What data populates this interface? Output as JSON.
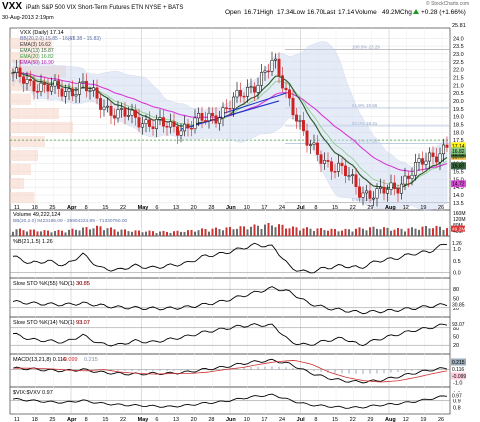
{
  "header": {
    "symbol": "VXX",
    "description": "iPath S&P 500 VIX Short-Term Futures ETN NYSE + BATS",
    "date": "30-Aug-2013 2:19pm",
    "open_label": "Open",
    "open": "16.71",
    "high_label": "High",
    "high": "17.34",
    "low_label": "Low",
    "low": "16.70",
    "last_label": "Last",
    "last": "17.14",
    "volume_label": "Volume",
    "volume": "49.2M",
    "chg_label": "Chg",
    "chg": "+0.28 (+1.66%)",
    "chg_icon": "up-triangle-icon",
    "watermark": "© StockCharts.com",
    "corner_value": "25.81"
  },
  "legends": {
    "price_title": "VXX (Daily) 17.14",
    "bb": "BB(20,2.0) 15.85 - 16.47",
    "bb_extra": "(15.38 - 15.83)",
    "ema3": "EMA(3) 16.62",
    "ema13": "EMA(13) 15.87",
    "ema20": "EMA(20) 16.82",
    "ema50": "EMA(50) 16.90",
    "volume": "Volume 49,222,124",
    "bb_row": "BB(20,2.0) 8423196.09 - 29904224.89 - 71330760.00",
    "pctb": "%B(21,1.5) 1.26",
    "sto55": "Slow STO %K(55) %D(1) 30.85",
    "sto55_d": "30.85",
    "sto14": "Slow STO %K(14) %D(1) 93.07",
    "sto14_d": "93.07",
    "macd": "MACD(13,21,8) 0.116",
    "macd_sig": "-0.099",
    "macd_hist": "0.215",
    "vix": "$VIX:$VXV 0.97"
  },
  "fib_labels": [
    "100.0% 23.29",
    "61.8% 19.56",
    "50.0% 18.41",
    "38.2% 17.28",
    "0.0% 13.54"
  ],
  "price_axis": [
    "24.0",
    "23.5",
    "23.0",
    "22.5",
    "22.0",
    "21.5",
    "21.0",
    "20.5",
    "20.0",
    "19.5",
    "19.0",
    "18.5",
    "18.0",
    "17.5",
    "17.0",
    "16.5",
    "16.0",
    "15.5",
    "15.0",
    "14.5",
    "14.0",
    "13.5"
  ],
  "price_tags": [
    "16.47",
    "17.14",
    "16.62",
    "16.82",
    "15.85",
    "15.87",
    "14.72"
  ],
  "volume_axis": [
    "160M",
    "120M",
    "80M",
    "40M"
  ],
  "volume_tag": "49.2M",
  "pctb_axis": [
    "1.0",
    "0.5",
    "0.0"
  ],
  "pctb_tag": "1.26",
  "sto55_axis": [
    "80",
    "50",
    "20"
  ],
  "sto55_tag": "30.85",
  "sto14_axis": [
    "80",
    "50",
    "20"
  ],
  "sto14_tag": "93.07",
  "macd_axis": [
    "0.5",
    "0.0",
    "-0.5",
    "-1.0"
  ],
  "macd_tags": [
    "0.215",
    "0.116",
    "-0.099"
  ],
  "vix_axis": [
    "1.0",
    "0.9",
    "0.8"
  ],
  "vix_tag": "0.97",
  "x_axis": [
    "11",
    "18",
    "25",
    "Apr",
    "8",
    "15",
    "22",
    "May",
    "6",
    "13",
    "20",
    "28",
    "Jun",
    "10",
    "17",
    "24",
    "Jul",
    "8",
    "15",
    "22",
    "29",
    "Aug",
    "12",
    "19",
    "26"
  ],
  "chart_data": {
    "type": "table",
    "title": "VXX (Daily) 17.14",
    "price_ylim": [
      13.3,
      24.4
    ],
    "notes": "Daily candlesticks with Bollinger Bands, EMAs and indicator panels; values estimated from the chart.",
    "x": [
      "Mar 11",
      "Mar 18",
      "Mar 25",
      "Apr 1",
      "Apr 8",
      "Apr 15",
      "Apr 22",
      "Apr 29",
      "May 6",
      "May 13",
      "May 20",
      "May 28",
      "Jun 3",
      "Jun 10",
      "Jun 17",
      "Jun 24",
      "Jul 1",
      "Jul 8",
      "Jul 15",
      "Jul 22",
      "Jul 29",
      "Aug 5",
      "Aug 12",
      "Aug 19",
      "Aug 26",
      "Aug 30"
    ],
    "series": [
      {
        "name": "VXX",
        "values": [
          21.6,
          21.2,
          20.8,
          20.6,
          21.0,
          19.9,
          19.2,
          18.9,
          18.6,
          18.3,
          18.4,
          18.8,
          19.3,
          20.2,
          21.2,
          22.4,
          20.0,
          17.1,
          16.2,
          15.5,
          14.3,
          14.0,
          14.5,
          15.5,
          16.4,
          17.14
        ]
      },
      {
        "name": "Volume 49,222,124",
        "values": [
          40,
          35,
          30,
          32,
          45,
          55,
          38,
          30,
          28,
          25,
          30,
          40,
          45,
          50,
          60,
          70,
          50,
          45,
          40,
          35,
          45,
          50,
          40,
          45,
          55,
          49
        ]
      },
      {
        "name": "%B(21,1.5) 1.26",
        "values": [
          0.7,
          0.4,
          0.5,
          0.3,
          0.8,
          0.2,
          0.1,
          0.3,
          0.2,
          0.3,
          0.4,
          0.7,
          0.8,
          1.0,
          1.2,
          1.1,
          0.2,
          0.0,
          0.2,
          0.3,
          0.2,
          0.5,
          0.6,
          0.8,
          0.9,
          1.26
        ]
      },
      {
        "name": "Slow STO %K(55) %D(1) 30.85",
        "values": [
          40,
          35,
          32,
          30,
          35,
          28,
          22,
          20,
          18,
          18,
          22,
          30,
          40,
          55,
          70,
          85,
          70,
          35,
          20,
          12,
          5,
          8,
          12,
          18,
          25,
          30.85
        ]
      },
      {
        "name": "Slow STO %K(14) %D(1) 93.07",
        "values": [
          60,
          40,
          35,
          30,
          55,
          25,
          20,
          35,
          30,
          40,
          50,
          65,
          75,
          85,
          90,
          88,
          30,
          20,
          35,
          45,
          20,
          40,
          55,
          70,
          80,
          93.07
        ]
      },
      {
        "name": "MACD(13,21,8) 0.116",
        "values": [
          0.1,
          0.05,
          -0.05,
          -0.1,
          0.0,
          -0.2,
          -0.3,
          -0.35,
          -0.3,
          -0.3,
          -0.2,
          0.0,
          0.15,
          0.4,
          0.6,
          0.7,
          0.4,
          -0.2,
          -0.6,
          -0.85,
          -0.95,
          -0.85,
          -0.6,
          -0.3,
          -0.05,
          0.116
        ]
      },
      {
        "name": "$VIX:$VXV 0.97",
        "values": [
          0.92,
          0.9,
          0.88,
          0.87,
          0.9,
          0.86,
          0.84,
          0.83,
          0.82,
          0.81,
          0.83,
          0.86,
          0.88,
          0.92,
          0.96,
          0.98,
          0.9,
          0.84,
          0.82,
          0.8,
          0.8,
          0.83,
          0.85,
          0.88,
          0.92,
          0.97
        ]
      }
    ]
  }
}
